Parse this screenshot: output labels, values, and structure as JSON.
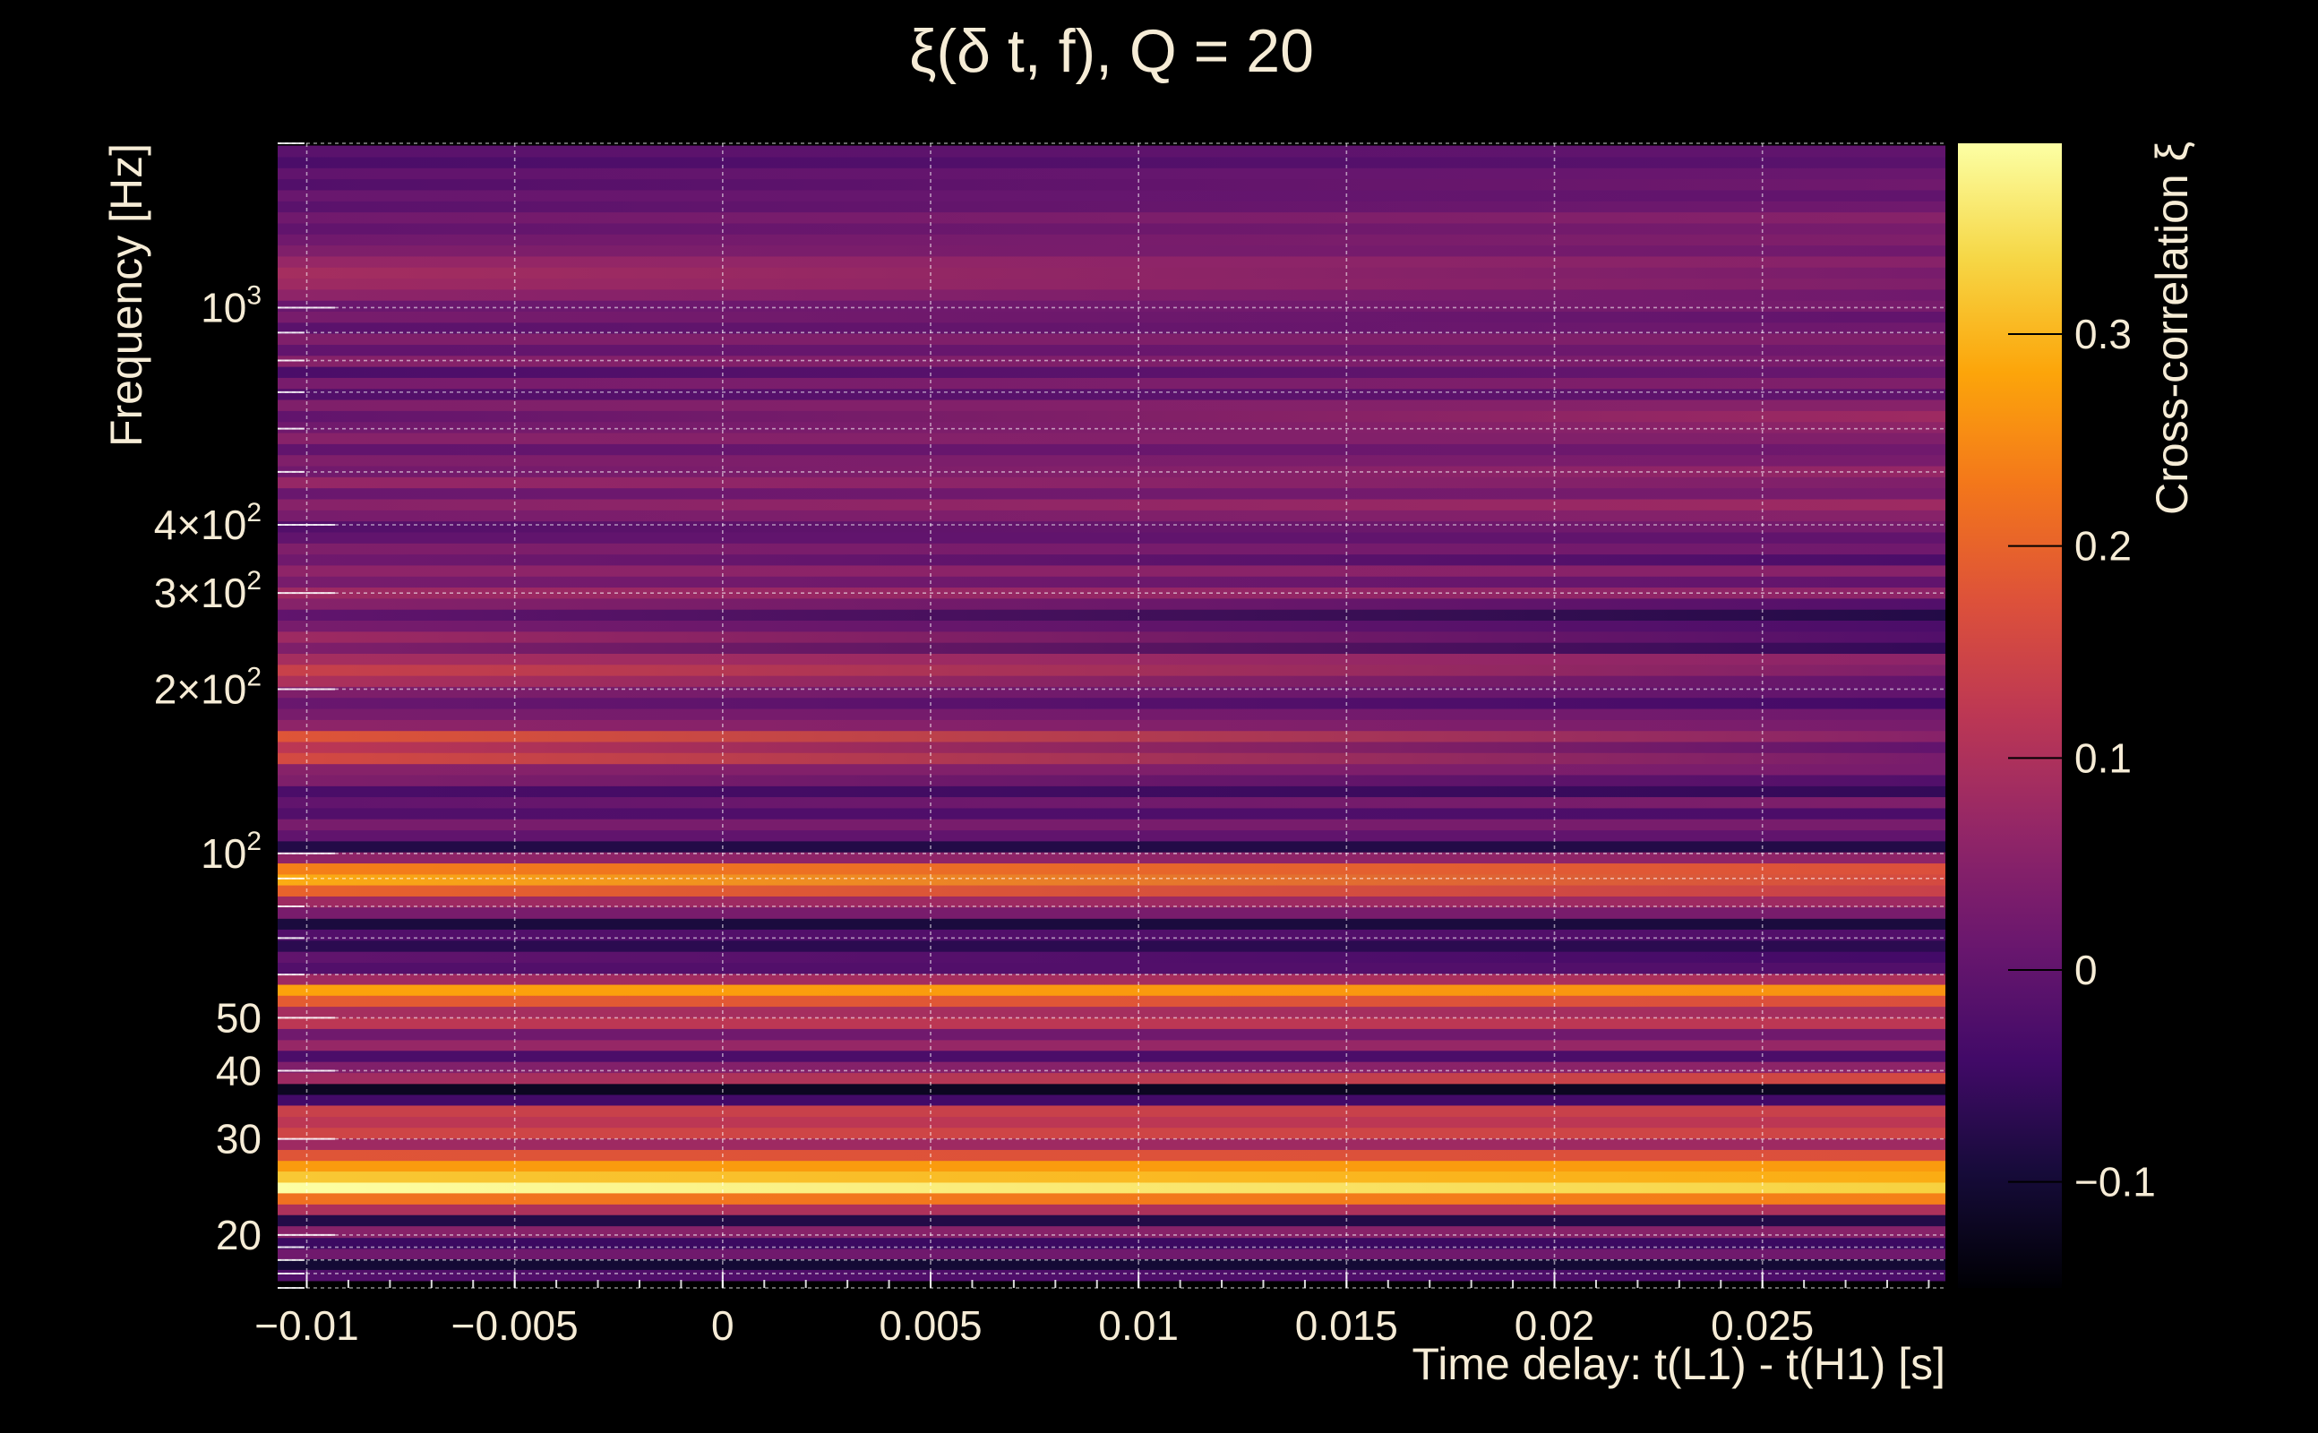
{
  "chart_data": {
    "type": "heatmap",
    "title": "ξ(δ t, f), Q = 20",
    "xlabel": "Time delay: t(L1) - t(H1) [s]",
    "ylabel": "Frequency [Hz]",
    "colorbar_label": "Cross-correlation ξ",
    "colormap": "inferno",
    "x_scale": "linear",
    "y_scale": "log",
    "xlim": [
      -0.0107,
      0.0294
    ],
    "ylim": [
      16,
      2000
    ],
    "clim": [
      -0.15,
      0.39
    ],
    "grid": true,
    "x_ticks": [
      {
        "value": -0.01,
        "label": "−0.01"
      },
      {
        "value": -0.005,
        "label": "−0.005"
      },
      {
        "value": 0,
        "label": "0"
      },
      {
        "value": 0.005,
        "label": "0.005"
      },
      {
        "value": 0.01,
        "label": "0.01"
      },
      {
        "value": 0.015,
        "label": "0.015"
      },
      {
        "value": 0.02,
        "label": "0.02"
      },
      {
        "value": 0.025,
        "label": "0.025"
      }
    ],
    "y_ticks": [
      {
        "value": 20,
        "base": "20",
        "exp": ""
      },
      {
        "value": 30,
        "base": "30",
        "exp": ""
      },
      {
        "value": 40,
        "base": "40",
        "exp": ""
      },
      {
        "value": 50,
        "base": "50",
        "exp": ""
      },
      {
        "value": 100,
        "base": "10",
        "exp": "2"
      },
      {
        "value": 200,
        "base": "2×10",
        "exp": "2"
      },
      {
        "value": 300,
        "base": "3×10",
        "exp": "2"
      },
      {
        "value": 400,
        "base": "4×10",
        "exp": "2"
      },
      {
        "value": 1000,
        "base": "10",
        "exp": "3"
      }
    ],
    "colorbar_ticks": [
      {
        "value": -0.1,
        "label": "−0.1"
      },
      {
        "value": 0,
        "label": "0"
      },
      {
        "value": 0.1,
        "label": "0.1"
      },
      {
        "value": 0.2,
        "label": "0.2"
      },
      {
        "value": 0.3,
        "label": "0.3"
      }
    ],
    "bands": [
      {
        "f_low": 16.5,
        "f_high": 17.3,
        "xi_left": -0.02,
        "xi_right": -0.03
      },
      {
        "f_low": 17.3,
        "f_high": 18.1,
        "xi_left": -0.1,
        "xi_right": -0.1
      },
      {
        "f_low": 18.1,
        "f_high": 18.9,
        "xi_left": 0.02,
        "xi_right": 0.02
      },
      {
        "f_low": 18.9,
        "f_high": 19.8,
        "xi_left": -0.05,
        "xi_right": -0.05
      },
      {
        "f_low": 19.8,
        "f_high": 20.8,
        "xi_left": 0.05,
        "xi_right": 0.05
      },
      {
        "f_low": 20.8,
        "f_high": 21.8,
        "xi_left": -0.08,
        "xi_right": -0.08
      },
      {
        "f_low": 21.8,
        "f_high": 22.8,
        "xi_left": 0.1,
        "xi_right": 0.1
      },
      {
        "f_low": 22.8,
        "f_high": 23.9,
        "xi_left": 0.22,
        "xi_right": 0.24
      },
      {
        "f_low": 23.9,
        "f_high": 25.0,
        "xi_left": 0.39,
        "xi_right": 0.33
      },
      {
        "f_low": 25.0,
        "f_high": 26.2,
        "xi_left": 0.32,
        "xi_right": 0.29
      },
      {
        "f_low": 26.2,
        "f_high": 27.4,
        "xi_left": 0.27,
        "xi_right": 0.27
      },
      {
        "f_low": 27.4,
        "f_high": 28.7,
        "xi_left": 0.18,
        "xi_right": 0.17
      },
      {
        "f_low": 28.7,
        "f_high": 30.1,
        "xi_left": 0.08,
        "xi_right": 0.08
      },
      {
        "f_low": 30.1,
        "f_high": 31.5,
        "xi_left": 0.15,
        "xi_right": 0.15
      },
      {
        "f_low": 31.5,
        "f_high": 33.0,
        "xi_left": 0.12,
        "xi_right": 0.12
      },
      {
        "f_low": 33.0,
        "f_high": 34.6,
        "xi_left": 0.14,
        "xi_right": 0.14
      },
      {
        "f_low": 34.6,
        "f_high": 36.2,
        "xi_left": -0.04,
        "xi_right": -0.04
      },
      {
        "f_low": 36.2,
        "f_high": 37.9,
        "xi_left": -0.12,
        "xi_right": -0.12
      },
      {
        "f_low": 37.9,
        "f_high": 39.7,
        "xi_left": 0.08,
        "xi_right": 0.16
      },
      {
        "f_low": 39.7,
        "f_high": 41.6,
        "xi_left": 0.04,
        "xi_right": 0.06
      },
      {
        "f_low": 41.6,
        "f_high": 43.6,
        "xi_left": -0.03,
        "xi_right": -0.03
      },
      {
        "f_low": 43.6,
        "f_high": 45.6,
        "xi_left": 0.07,
        "xi_right": 0.07
      },
      {
        "f_low": 45.6,
        "f_high": 47.8,
        "xi_left": 0.02,
        "xi_right": 0.02
      },
      {
        "f_low": 47.8,
        "f_high": 50.1,
        "xi_left": 0.12,
        "xi_right": 0.12
      },
      {
        "f_low": 50.1,
        "f_high": 52.5,
        "xi_left": 0.09,
        "xi_right": 0.09
      },
      {
        "f_low": 52.5,
        "f_high": 55.0,
        "xi_left": 0.19,
        "xi_right": 0.17
      },
      {
        "f_low": 55.0,
        "f_high": 57.6,
        "xi_left": 0.28,
        "xi_right": 0.26
      },
      {
        "f_low": 57.6,
        "f_high": 60.3,
        "xi_left": 0.08,
        "xi_right": 0.1
      },
      {
        "f_low": 60.3,
        "f_high": 63.2,
        "xi_left": -0.02,
        "xi_right": -0.02
      },
      {
        "f_low": 63.2,
        "f_high": 66.2,
        "xi_left": 0.0,
        "xi_right": -0.04
      },
      {
        "f_low": 66.2,
        "f_high": 69.4,
        "xi_left": -0.07,
        "xi_right": -0.07
      },
      {
        "f_low": 69.4,
        "f_high": 72.7,
        "xi_left": -0.02,
        "xi_right": -0.02
      },
      {
        "f_low": 72.7,
        "f_high": 76.1,
        "xi_left": -0.09,
        "xi_right": -0.09
      },
      {
        "f_low": 76.1,
        "f_high": 79.8,
        "xi_left": 0.03,
        "xi_right": 0.03
      },
      {
        "f_low": 79.8,
        "f_high": 83.6,
        "xi_left": 0.08,
        "xi_right": 0.08
      },
      {
        "f_low": 83.6,
        "f_high": 87.6,
        "xi_left": 0.2,
        "xi_right": 0.14
      },
      {
        "f_low": 87.6,
        "f_high": 91.7,
        "xi_left": 0.29,
        "xi_right": 0.16
      },
      {
        "f_low": 91.7,
        "f_high": 96.1,
        "xi_left": 0.24,
        "xi_right": 0.17
      },
      {
        "f_low": 96.1,
        "f_high": 100.7,
        "xi_left": 0.06,
        "xi_right": 0.06
      },
      {
        "f_low": 100.7,
        "f_high": 105.5,
        "xi_left": -0.08,
        "xi_right": -0.08
      },
      {
        "f_low": 105.5,
        "f_high": 110.5,
        "xi_left": 0.0,
        "xi_right": 0.0
      },
      {
        "f_low": 110.5,
        "f_high": 115.8,
        "xi_left": 0.03,
        "xi_right": 0.03
      },
      {
        "f_low": 115.8,
        "f_high": 121.3,
        "xi_left": -0.02,
        "xi_right": -0.03
      },
      {
        "f_low": 121.3,
        "f_high": 127.1,
        "xi_left": 0.0,
        "xi_right": 0.04
      },
      {
        "f_low": 127.1,
        "f_high": 133.1,
        "xi_left": -0.03,
        "xi_right": -0.06
      },
      {
        "f_low": 133.1,
        "f_high": 139.5,
        "xi_left": 0.04,
        "xi_right": -0.02
      },
      {
        "f_low": 139.5,
        "f_high": 146.1,
        "xi_left": 0.05,
        "xi_right": 0.03
      },
      {
        "f_low": 146.1,
        "f_high": 153.1,
        "xi_left": 0.16,
        "xi_right": 0.03
      },
      {
        "f_low": 153.1,
        "f_high": 160.4,
        "xi_left": 0.12,
        "xi_right": 0.0
      },
      {
        "f_low": 160.4,
        "f_high": 168.0,
        "xi_left": 0.18,
        "xi_right": 0.05
      },
      {
        "f_low": 168.0,
        "f_high": 176.0,
        "xi_left": 0.06,
        "xi_right": 0.03
      },
      {
        "f_low": 176.0,
        "f_high": 184.4,
        "xi_left": 0.03,
        "xi_right": 0.02
      },
      {
        "f_low": 184.4,
        "f_high": 193.2,
        "xi_left": 0.01,
        "xi_right": -0.04
      },
      {
        "f_low": 193.2,
        "f_high": 202.4,
        "xi_left": 0.04,
        "xi_right": 0.0
      },
      {
        "f_low": 202.4,
        "f_high": 212.0,
        "xi_left": 0.1,
        "xi_right": 0.0
      },
      {
        "f_low": 212.0,
        "f_high": 222.1,
        "xi_left": 0.14,
        "xi_right": 0.04
      },
      {
        "f_low": 222.1,
        "f_high": 232.7,
        "xi_left": 0.09,
        "xi_right": 0.06
      },
      {
        "f_low": 232.7,
        "f_high": 243.8,
        "xi_left": 0.04,
        "xi_right": -0.06
      },
      {
        "f_low": 243.8,
        "f_high": 255.4,
        "xi_left": 0.08,
        "xi_right": -0.02
      },
      {
        "f_low": 255.4,
        "f_high": 267.6,
        "xi_left": 0.03,
        "xi_right": -0.03
      },
      {
        "f_low": 267.6,
        "f_high": 280.3,
        "xi_left": 0.0,
        "xi_right": -0.08
      },
      {
        "f_low": 280.3,
        "f_high": 293.7,
        "xi_left": 0.05,
        "xi_right": -0.02
      },
      {
        "f_low": 293.7,
        "f_high": 307.7,
        "xi_left": 0.08,
        "xi_right": 0.06
      },
      {
        "f_low": 307.7,
        "f_high": 322.3,
        "xi_left": 0.03,
        "xi_right": 0.0
      },
      {
        "f_low": 322.3,
        "f_high": 337.7,
        "xi_left": 0.06,
        "xi_right": 0.05
      },
      {
        "f_low": 337.7,
        "f_high": 353.8,
        "xi_left": 0.02,
        "xi_right": -0.03
      },
      {
        "f_low": 353.8,
        "f_high": 370.6,
        "xi_left": 0.04,
        "xi_right": 0.02
      },
      {
        "f_low": 370.6,
        "f_high": 388.3,
        "xi_left": 0.0,
        "xi_right": 0.0
      },
      {
        "f_low": 388.3,
        "f_high": 406.8,
        "xi_left": -0.02,
        "xi_right": 0.03
      },
      {
        "f_low": 406.8,
        "f_high": 426.2,
        "xi_left": 0.03,
        "xi_right": 0.05
      },
      {
        "f_low": 426.2,
        "f_high": 446.5,
        "xi_left": 0.05,
        "xi_right": 0.08
      },
      {
        "f_low": 446.5,
        "f_high": 467.8,
        "xi_left": 0.01,
        "xi_right": 0.03
      },
      {
        "f_low": 467.8,
        "f_high": 490.1,
        "xi_left": 0.07,
        "xi_right": 0.04
      },
      {
        "f_low": 490.1,
        "f_high": 513.4,
        "xi_left": 0.02,
        "xi_right": 0.07
      },
      {
        "f_low": 513.4,
        "f_high": 537.9,
        "xi_left": 0.04,
        "xi_right": 0.03
      },
      {
        "f_low": 537.9,
        "f_high": 563.5,
        "xi_left": 0.0,
        "xi_right": 0.02
      },
      {
        "f_low": 563.5,
        "f_high": 590.4,
        "xi_left": 0.05,
        "xi_right": 0.04
      },
      {
        "f_low": 590.4,
        "f_high": 618.5,
        "xi_left": 0.02,
        "xi_right": 0.06
      },
      {
        "f_low": 618.5,
        "f_high": 648.0,
        "xi_left": 0.0,
        "xi_right": 0.08
      },
      {
        "f_low": 648.0,
        "f_high": 678.9,
        "xi_left": 0.04,
        "xi_right": 0.05
      },
      {
        "f_low": 678.9,
        "f_high": 711.2,
        "xi_left": -0.02,
        "xi_right": 0.0
      },
      {
        "f_low": 711.2,
        "f_high": 745.1,
        "xi_left": 0.03,
        "xi_right": 0.04
      },
      {
        "f_low": 745.1,
        "f_high": 780.6,
        "xi_left": -0.03,
        "xi_right": 0.01
      },
      {
        "f_low": 780.6,
        "f_high": 817.8,
        "xi_left": 0.05,
        "xi_right": 0.03
      },
      {
        "f_low": 817.8,
        "f_high": 856.8,
        "xi_left": 0.0,
        "xi_right": 0.02
      },
      {
        "f_low": 856.8,
        "f_high": 897.6,
        "xi_left": 0.04,
        "xi_right": 0.04
      },
      {
        "f_low": 897.6,
        "f_high": 940.4,
        "xi_left": -0.01,
        "xi_right": 0.02
      },
      {
        "f_low": 940.4,
        "f_high": 985.2,
        "xi_left": 0.03,
        "xi_right": 0.0
      },
      {
        "f_low": 985.2,
        "f_high": 1032.1,
        "xi_left": 0.01,
        "xi_right": 0.03
      },
      {
        "f_low": 1032.1,
        "f_high": 1081.3,
        "xi_left": 0.06,
        "xi_right": 0.02
      },
      {
        "f_low": 1081.3,
        "f_high": 1132.8,
        "xi_left": 0.08,
        "xi_right": 0.04
      },
      {
        "f_low": 1132.8,
        "f_high": 1186.8,
        "xi_left": 0.09,
        "xi_right": 0.03
      },
      {
        "f_low": 1186.8,
        "f_high": 1243.4,
        "xi_left": 0.07,
        "xi_right": 0.05
      },
      {
        "f_low": 1243.4,
        "f_high": 1302.6,
        "xi_left": 0.04,
        "xi_right": 0.02
      },
      {
        "f_low": 1302.6,
        "f_high": 1364.7,
        "xi_left": 0.02,
        "xi_right": 0.04
      },
      {
        "f_low": 1364.7,
        "f_high": 1429.8,
        "xi_left": 0.0,
        "xi_right": 0.03
      },
      {
        "f_low": 1429.8,
        "f_high": 1497.9,
        "xi_left": 0.02,
        "xi_right": 0.05
      },
      {
        "f_low": 1497.9,
        "f_high": 1569.3,
        "xi_left": -0.01,
        "xi_right": 0.02
      },
      {
        "f_low": 1569.3,
        "f_high": 1644.1,
        "xi_left": 0.01,
        "xi_right": 0.0
      },
      {
        "f_low": 1644.1,
        "f_high": 1722.5,
        "xi_left": -0.02,
        "xi_right": 0.02
      },
      {
        "f_low": 1722.5,
        "f_high": 1804.6,
        "xi_left": 0.0,
        "xi_right": 0.01
      },
      {
        "f_low": 1804.6,
        "f_high": 1890.6,
        "xi_left": -0.03,
        "xi_right": -0.01
      },
      {
        "f_low": 1890.6,
        "f_high": 1980.7,
        "xi_left": -0.01,
        "xi_right": 0.0
      }
    ]
  }
}
